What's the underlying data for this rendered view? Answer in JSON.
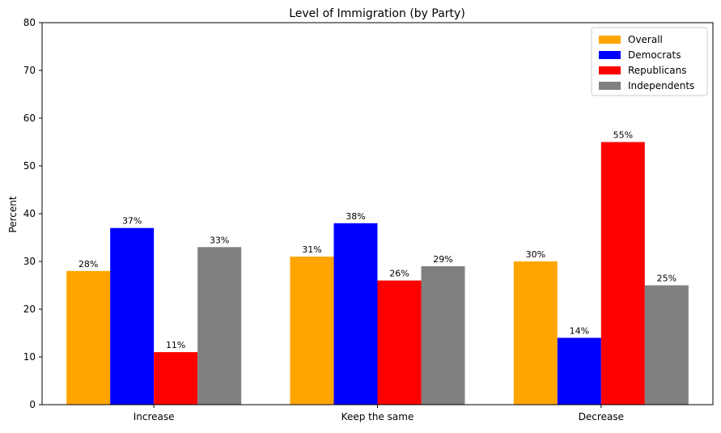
{
  "chart_data": {
    "type": "bar",
    "title": "Level of Immigration (by Party)",
    "xlabel": "",
    "ylabel": "Percent",
    "ylim": [
      0,
      80
    ],
    "yticks": [
      0,
      10,
      20,
      30,
      40,
      50,
      60,
      70,
      80
    ],
    "grid": false,
    "legend_position": "top-right",
    "value_suffix": "%",
    "categories": [
      "Increase",
      "Keep the same",
      "Decrease"
    ],
    "series": [
      {
        "name": "Overall",
        "color": "#FFA500",
        "values": [
          28,
          31,
          30
        ]
      },
      {
        "name": "Democrats",
        "color": "#0000FF",
        "values": [
          37,
          38,
          14
        ]
      },
      {
        "name": "Republicans",
        "color": "#FF0000",
        "values": [
          11,
          26,
          55
        ]
      },
      {
        "name": "Independents",
        "color": "#808080",
        "values": [
          33,
          29,
          25
        ]
      }
    ]
  }
}
